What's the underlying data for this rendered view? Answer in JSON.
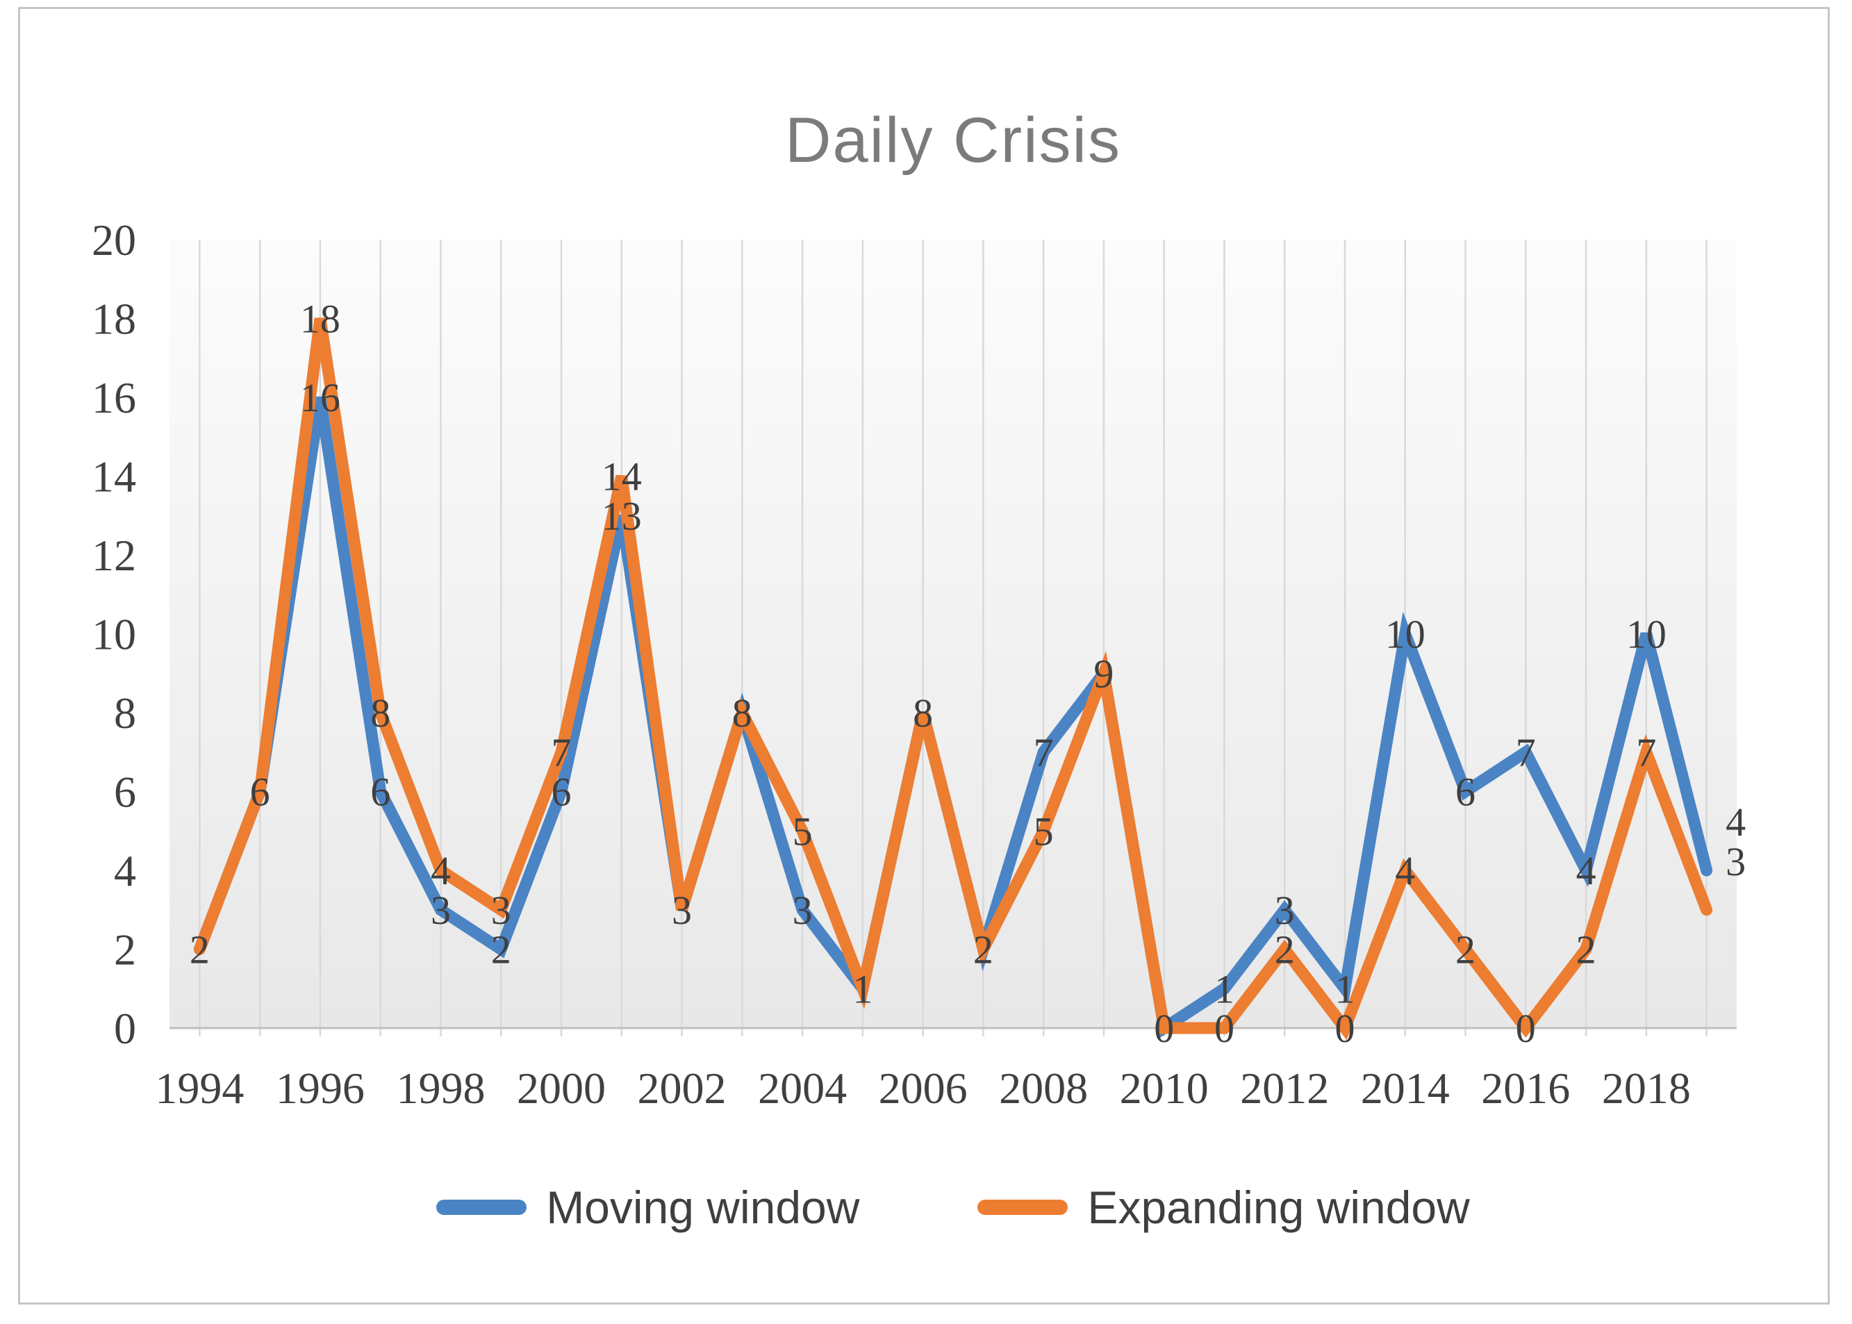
{
  "chart_data": {
    "type": "line",
    "title": "Daily Crisis",
    "x": [
      1994,
      1995,
      1996,
      1997,
      1998,
      1999,
      2000,
      2001,
      2002,
      2003,
      2004,
      2005,
      2006,
      2007,
      2008,
      2009,
      2010,
      2011,
      2012,
      2013,
      2014,
      2015,
      2016,
      2017,
      2018,
      2019
    ],
    "x_tick_labels": [
      "1994",
      "1996",
      "1998",
      "2000",
      "2002",
      "2004",
      "2006",
      "2008",
      "2010",
      "2012",
      "2014",
      "2016",
      "2018"
    ],
    "y_ticks": [
      0,
      2,
      4,
      6,
      8,
      10,
      12,
      14,
      16,
      18,
      20
    ],
    "ylim": [
      0,
      20
    ],
    "grid": "vertical-per-category",
    "legend_position": "bottom",
    "series": [
      {
        "name": "Moving window",
        "color": "#4b84c4",
        "values": [
          2,
          6,
          16,
          6,
          3,
          2,
          6,
          13,
          3,
          8,
          3,
          1,
          8,
          2,
          7,
          9,
          0,
          1,
          3,
          1,
          10,
          6,
          7,
          4,
          10,
          4
        ]
      },
      {
        "name": "Expanding window",
        "color": "#ed7d31",
        "values": [
          2,
          6,
          18,
          8,
          4,
          3,
          7,
          14,
          3,
          8,
          5,
          1,
          8,
          2,
          5,
          9,
          0,
          0,
          2,
          0,
          4,
          2,
          0,
          2,
          7,
          3
        ]
      }
    ],
    "data_label_color": "#3f3f3f",
    "axis_text_color": "#404040",
    "gridline_color": "#d9d9d9",
    "axis_line_color": "#bfbfbf",
    "title_color": "#7b7b7b"
  },
  "legend": {
    "items": [
      {
        "label": "Moving window"
      },
      {
        "label": "Expanding window"
      }
    ]
  }
}
